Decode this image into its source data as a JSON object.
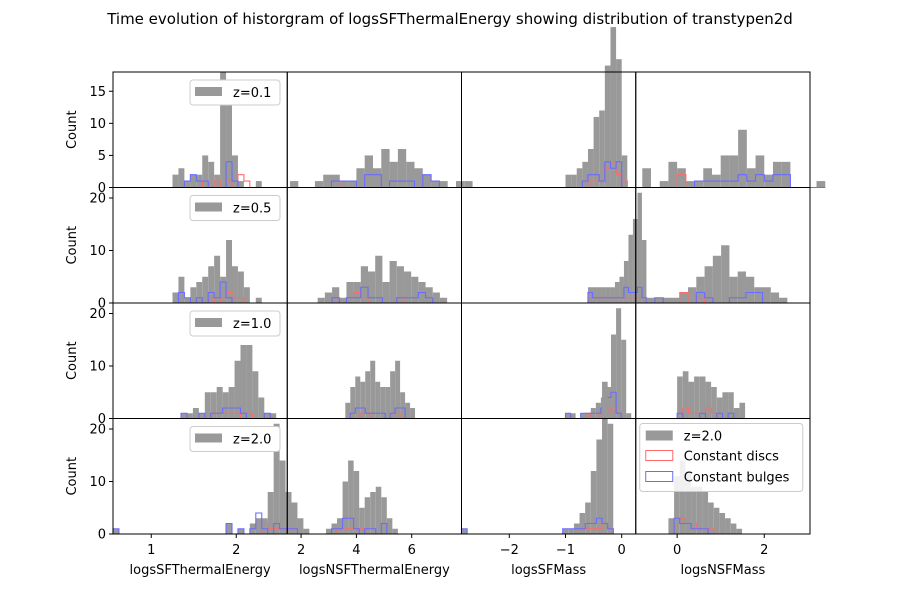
{
  "figure": {
    "title": "Time evolution of historgram of logsSFThermalEnergy showing distribution of transtypen2d",
    "ylabel": "Count",
    "row_labels": [
      "z=0.1",
      "z=0.5",
      "z=1.0",
      "z=2.0"
    ],
    "columns": [
      "logsSFThermalEnergy",
      "logsNSFThermalEnergy",
      "logsSFMass",
      "logsNSFMass"
    ],
    "legend_labels": [
      "z=2.0",
      "Constant discs",
      "Constant bulges"
    ]
  },
  "colors": {
    "all": "#999999",
    "discs": "#ff6b6b",
    "bulges": "#6b6bff"
  },
  "chart_data": {
    "type": "bar",
    "subtype": "histogram-grid",
    "rows": 4,
    "cols": 4,
    "sharex": "col",
    "x_ranges": [
      [
        0.55,
        2.6
      ],
      [
        1.5,
        7.8
      ],
      [
        -2.85,
        0.25
      ],
      [
        -0.95,
        3.05
      ]
    ],
    "x_ticks": [
      [
        1,
        2
      ],
      [
        2,
        4,
        6
      ],
      [
        -2,
        -1,
        0
      ],
      [
        0,
        2
      ]
    ],
    "y_ranges": [
      [
        0,
        18
      ],
      [
        0,
        22
      ],
      [
        0,
        22
      ],
      [
        0,
        22
      ]
    ],
    "y_ticks": [
      [
        0,
        5,
        10,
        15
      ],
      [
        0,
        10,
        20
      ],
      [
        0,
        10,
        20
      ],
      [
        0,
        10,
        20
      ]
    ],
    "panels": [
      [
        {
          "bin_start": 1.25,
          "bin_width": 0.07,
          "all": [
            2,
            3,
            1,
            2,
            2,
            5,
            4,
            2,
            18,
            13,
            5,
            1,
            0,
            0,
            1
          ],
          "discs": [
            0,
            0,
            0,
            0,
            0,
            1,
            0,
            1,
            0,
            1,
            0,
            2,
            1,
            0,
            0
          ],
          "bulges": [
            0,
            0,
            1,
            2,
            1,
            1,
            0,
            0,
            0,
            4,
            1,
            0,
            0,
            0,
            0
          ]
        },
        {
          "bin_start": 1.6,
          "bin_width": 0.3,
          "all": [
            1,
            0,
            0,
            1,
            2,
            2,
            1,
            1,
            3,
            5,
            3,
            6,
            4,
            6,
            4,
            3,
            2,
            1,
            1,
            0,
            1,
            1
          ],
          "discs": [
            0,
            0,
            0,
            0,
            0,
            1,
            0,
            0,
            0,
            0,
            0,
            0,
            0,
            0,
            0,
            0,
            0,
            0,
            0,
            0,
            0,
            0
          ],
          "bulges": [
            0,
            0,
            0,
            0,
            0,
            1,
            1,
            1,
            0,
            2,
            2,
            0,
            1,
            1,
            1,
            0,
            2,
            1,
            0,
            0,
            0,
            0
          ]
        },
        {
          "bin_start": -1.0,
          "bin_width": 0.1,
          "all": [
            2,
            2,
            3,
            4,
            6,
            11,
            12,
            19,
            25,
            20,
            5
          ],
          "discs": [
            0,
            0,
            0,
            0,
            1,
            1,
            1,
            3,
            4,
            2,
            1
          ],
          "bulges": [
            0,
            0,
            0,
            1,
            2,
            2,
            1,
            4,
            3,
            4,
            0
          ]
        },
        {
          "bin_start": -0.8,
          "bin_width": 0.2,
          "all": [
            3,
            0,
            1,
            4,
            3,
            1,
            1,
            3,
            2,
            5,
            5,
            9,
            3,
            5,
            2,
            4,
            4,
            0,
            0,
            0,
            1
          ],
          "discs": [
            0,
            0,
            0,
            0,
            2,
            0,
            0,
            0,
            0,
            0,
            0,
            0,
            0,
            0,
            0,
            0,
            0,
            0,
            0,
            0,
            0
          ],
          "bulges": [
            0,
            0,
            0,
            0,
            0,
            0,
            1,
            1,
            1,
            1,
            1,
            2,
            1,
            2,
            1,
            2,
            2,
            0,
            0,
            0,
            0
          ]
        }
      ],
      [
        {
          "bin_start": 1.25,
          "bin_width": 0.07,
          "all": [
            2,
            5,
            1,
            3,
            4,
            5,
            7,
            9,
            5,
            12,
            7,
            6,
            3,
            0,
            1
          ],
          "discs": [
            0,
            0,
            0,
            0,
            0,
            0,
            1,
            0,
            1,
            2,
            1,
            1,
            0,
            0,
            0
          ],
          "bulges": [
            0,
            2,
            1,
            0,
            1,
            0,
            2,
            1,
            4,
            1,
            0,
            0,
            0,
            0,
            0
          ]
        },
        {
          "bin_start": 2.6,
          "bin_width": 0.26,
          "all": [
            1,
            2,
            3,
            1,
            4,
            4,
            7,
            6,
            9,
            4,
            8,
            7,
            6,
            5,
            4,
            3,
            2,
            1
          ],
          "discs": [
            0,
            0,
            1,
            0,
            1,
            2,
            1,
            0,
            0,
            0,
            0,
            1,
            0,
            0,
            0,
            0,
            0,
            0
          ],
          "bulges": [
            0,
            0,
            1,
            0,
            1,
            1,
            3,
            1,
            1,
            0,
            0,
            1,
            1,
            1,
            2,
            1,
            0,
            0
          ]
        },
        {
          "bin_start": -0.6,
          "bin_width": 0.08,
          "all": [
            3,
            3,
            3,
            3,
            3,
            3,
            4,
            5,
            8,
            13,
            16,
            21,
            12
          ],
          "discs": [
            1,
            1,
            1,
            1,
            1,
            1,
            1,
            1,
            1,
            1,
            1,
            1,
            1
          ],
          "bulges": [
            2,
            1,
            1,
            1,
            1,
            1,
            1,
            1,
            3,
            2,
            2,
            3,
            1
          ]
        },
        {
          "bin_start": -0.7,
          "bin_width": 0.19,
          "all": [
            1,
            1,
            1,
            1,
            2,
            3,
            5,
            7,
            9,
            11,
            5,
            6,
            5,
            3,
            3,
            2,
            1
          ],
          "discs": [
            0,
            0,
            0,
            0,
            2,
            0,
            1,
            0,
            0,
            0,
            0,
            0,
            0,
            0,
            0,
            0,
            0
          ],
          "bulges": [
            0,
            1,
            0,
            0,
            0,
            0,
            2,
            1,
            0,
            0,
            1,
            1,
            2,
            2,
            0,
            0,
            0
          ]
        }
      ],
      [
        {
          "bin_start": 1.35,
          "bin_width": 0.07,
          "all": [
            1,
            1,
            2,
            1,
            5,
            5,
            6,
            5,
            6,
            11,
            14,
            14,
            9,
            4,
            1,
            1
          ],
          "discs": [
            0,
            0,
            0,
            0,
            0,
            1,
            1,
            1,
            1,
            1,
            0,
            1,
            0,
            0,
            0,
            0
          ],
          "bulges": [
            1,
            0,
            0,
            1,
            0,
            1,
            1,
            2,
            2,
            2,
            1,
            0,
            0,
            0,
            1,
            0
          ]
        },
        {
          "bin_start": 3.6,
          "bin_width": 0.18,
          "all": [
            3,
            6,
            8,
            7,
            9,
            11,
            7,
            6,
            6,
            9,
            11,
            5,
            3,
            2
          ],
          "discs": [
            0,
            0,
            0,
            1,
            1,
            0,
            0,
            0,
            0,
            0,
            1,
            0,
            0,
            0
          ],
          "bulges": [
            0,
            1,
            2,
            2,
            1,
            1,
            1,
            1,
            0,
            1,
            2,
            2,
            0,
            0
          ]
        },
        {
          "bin_start": -1.0,
          "bin_width": 0.09,
          "all": [
            1,
            1,
            0,
            1,
            1,
            2,
            3,
            4,
            6,
            16,
            21,
            15,
            1
          ],
          "discs": [
            0,
            0,
            0,
            0,
            1,
            0,
            0,
            1,
            1,
            2,
            1,
            0,
            0
          ],
          "bulges": [
            1,
            0,
            0,
            1,
            1,
            1,
            1,
            2,
            4,
            5,
            1,
            0,
            0
          ]
        },
        {
          "bin_start": 0.0,
          "bin_width": 0.13,
          "all": [
            8,
            9,
            7,
            8,
            8,
            7,
            6,
            4,
            5,
            5,
            2,
            3
          ],
          "discs": [
            0,
            2,
            1,
            1,
            1,
            2,
            1,
            0,
            0,
            0,
            0,
            0
          ],
          "bulges": [
            1,
            0,
            0,
            0,
            1,
            0,
            0,
            1,
            0,
            1,
            0,
            0
          ]
        }
      ],
      [
        {
          "bin_start": 0.55,
          "bin_width": 0.07,
          "all": [
            1,
            0,
            0,
            0,
            0,
            0,
            0,
            0,
            0,
            0,
            0,
            0,
            0,
            0,
            0,
            0,
            0,
            0,
            0,
            2,
            0,
            1,
            0,
            2,
            3,
            3,
            8,
            21,
            14,
            8,
            6,
            3,
            1
          ],
          "discs": [
            0,
            0,
            0,
            0,
            0,
            0,
            0,
            0,
            0,
            0,
            0,
            0,
            0,
            0,
            0,
            0,
            0,
            0,
            0,
            0,
            0,
            0,
            0,
            0,
            0,
            2,
            1,
            1,
            1,
            0,
            1,
            0,
            0
          ],
          "bulges": [
            1,
            0,
            0,
            0,
            0,
            0,
            0,
            0,
            0,
            0,
            0,
            0,
            0,
            0,
            0,
            0,
            0,
            0,
            0,
            2,
            0,
            1,
            0,
            1,
            4,
            1,
            0,
            2,
            1,
            1,
            1,
            0,
            0
          ]
        },
        {
          "bin_start": 2.9,
          "bin_width": 0.2,
          "all": [
            1,
            2,
            3,
            10,
            14,
            12,
            5,
            7,
            8,
            9,
            7,
            3,
            1
          ],
          "discs": [
            0,
            0,
            1,
            1,
            1,
            1,
            1,
            0,
            0,
            0,
            0,
            0,
            0
          ],
          "bulges": [
            0,
            1,
            1,
            3,
            3,
            1,
            0,
            1,
            1,
            0,
            2,
            0,
            0
          ]
        },
        {
          "bin_start": -2.85,
          "bin_width": 0.1,
          "all": [
            1,
            0,
            0,
            0,
            0,
            0,
            0,
            0,
            0,
            0,
            0,
            0,
            0,
            0,
            0,
            0,
            0,
            0,
            1,
            1,
            2,
            4,
            6,
            12,
            18,
            29,
            21
          ],
          "discs": [
            0,
            0,
            0,
            0,
            0,
            0,
            0,
            0,
            0,
            0,
            0,
            0,
            0,
            0,
            0,
            0,
            0,
            0,
            0,
            0,
            0,
            1,
            1,
            1,
            1,
            2,
            1
          ],
          "bulges": [
            1,
            0,
            0,
            0,
            0,
            0,
            0,
            0,
            0,
            0,
            0,
            0,
            0,
            0,
            0,
            0,
            0,
            0,
            1,
            1,
            1,
            1,
            2,
            2,
            3,
            2,
            1
          ]
        },
        {
          "bin_start": -0.2,
          "bin_width": 0.13,
          "all": [
            3,
            11,
            14,
            12,
            9,
            9,
            8,
            6,
            5,
            4,
            3,
            2,
            1
          ],
          "discs": [
            0,
            2,
            3,
            2,
            2,
            1,
            1,
            1,
            0,
            0,
            0,
            0,
            0
          ],
          "bulges": [
            0,
            3,
            2,
            2,
            1,
            1,
            1,
            0,
            0,
            0,
            0,
            0,
            0
          ]
        }
      ]
    ]
  }
}
